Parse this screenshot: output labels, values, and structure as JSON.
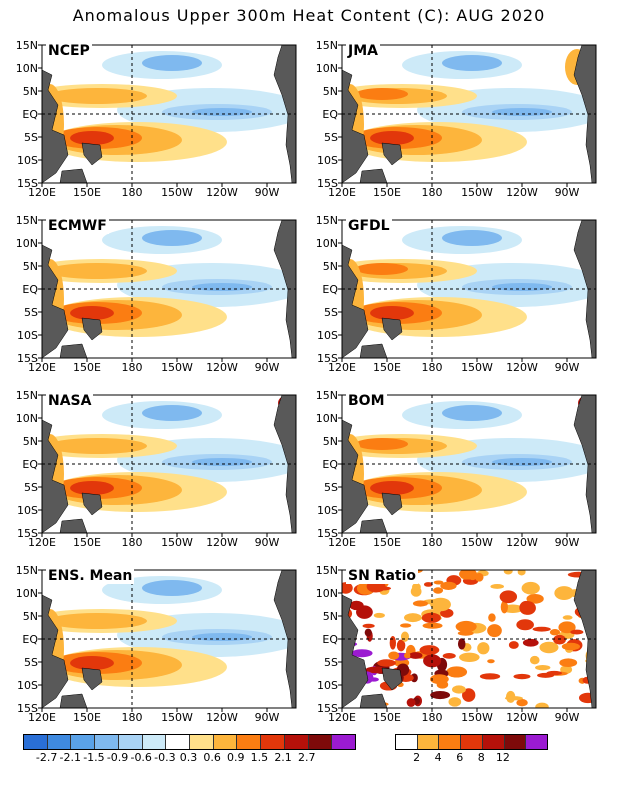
{
  "title": "Anomalous Upper 300m Heat Content (C): AUG 2020",
  "panels": [
    {
      "name": "NCEP"
    },
    {
      "name": "JMA"
    },
    {
      "name": "ECMWF"
    },
    {
      "name": "GFDL"
    },
    {
      "name": "NASA"
    },
    {
      "name": "BOM"
    },
    {
      "name": "ENS. Mean"
    },
    {
      "name": "SN Ratio"
    }
  ],
  "lat_labels": [
    "15N",
    "10N",
    "5N",
    "EQ",
    "5S",
    "10S",
    "15S"
  ],
  "lon_labels": [
    "120E",
    "150E",
    "180",
    "150W",
    "120W",
    "90W"
  ],
  "colorbar_anomaly": {
    "labels": [
      "-2.7",
      "-2.1",
      "-1.5",
      "-0.9",
      "-0.6",
      "-0.3",
      "0.3",
      "0.6",
      "0.9",
      "1.5",
      "2.1",
      "2.7"
    ],
    "colors": [
      "#2a6fd6",
      "#3f8ae0",
      "#5aa2e8",
      "#7fb9ef",
      "#a9d3f5",
      "#cdeaf8",
      "#ffffff",
      "#ffe08a",
      "#fdb53c",
      "#fb7d12",
      "#e2370b",
      "#b5110a",
      "#7e0a0a",
      "#9b1bd1"
    ]
  },
  "colorbar_ratio": {
    "labels": [
      "2",
      "4",
      "6",
      "8",
      "12"
    ],
    "colors": [
      "#ffffff",
      "#fdb53c",
      "#fb7d12",
      "#e2370b",
      "#b5110a",
      "#7e0a0a",
      "#9b1bd1"
    ]
  },
  "chart_data": {
    "type": "heatmap",
    "title": "Anomalous Upper 300m Heat Content (C): AUG 2020",
    "x_ticks": [
      "120E",
      "150E",
      "180",
      "150W",
      "120W",
      "90W"
    ],
    "y_ticks": [
      "15N",
      "10N",
      "5N",
      "EQ",
      "5S",
      "10S",
      "15S"
    ],
    "x_range_deg_east": [
      120,
      290
    ],
    "y_range_deg_north": [
      -15,
      15
    ],
    "panels": [
      "NCEP",
      "JMA",
      "ECMWF",
      "GFDL",
      "NASA",
      "BOM",
      "ENS. Mean",
      "SN Ratio"
    ],
    "anomaly_levels": [
      -2.7,
      -2.1,
      -1.5,
      -0.9,
      -0.6,
      -0.3,
      0.3,
      0.6,
      0.9,
      1.5,
      2.1,
      2.7
    ],
    "sn_ratio_levels": [
      2,
      4,
      6,
      8,
      12
    ],
    "features": [
      {
        "pattern": "positive anomaly band",
        "lon_center_deg_east": 165,
        "lat_center_deg_north": -6,
        "peak_value_C": 2.1
      },
      {
        "pattern": "positive anomaly band",
        "lon_center_deg_east": 165,
        "lat_center_deg_north": 5,
        "peak_value_C": 1.5
      },
      {
        "pattern": "negative anomaly tongue",
        "lon_center_deg_east": 225,
        "lat_center_deg_north": 1,
        "peak_value_C": -0.9
      },
      {
        "pattern": "negative anomaly",
        "lon_center_deg_east": 205,
        "lat_center_deg_north": 11,
        "peak_value_C": -0.9
      }
    ]
  }
}
